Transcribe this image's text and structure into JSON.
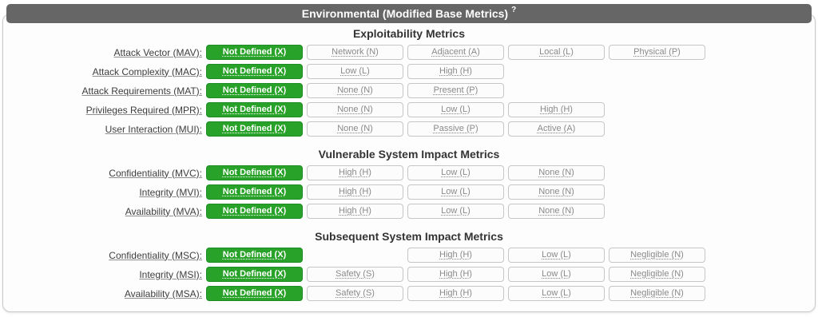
{
  "header": {
    "title": "Environmental (Modified Base Metrics)",
    "help_mark": "?"
  },
  "colors": {
    "header_bg": "#666666",
    "selected_bg": "#28a228",
    "selected_border": "#1d8c24",
    "panel_border": "#c9c9c9",
    "panel_bg": "#fdfdfd"
  },
  "sections": [
    {
      "title": "Exploitability Metrics",
      "rows": [
        {
          "label": "Attack Vector (MAV):",
          "buttons": [
            {
              "label": "Not Defined (X)",
              "col": 1,
              "selected": true
            },
            {
              "label": "Network (N)",
              "col": 2,
              "selected": false
            },
            {
              "label": "Adjacent (A)",
              "col": 3,
              "selected": false
            },
            {
              "label": "Local (L)",
              "col": 4,
              "selected": false
            },
            {
              "label": "Physical (P)",
              "col": 5,
              "selected": false
            }
          ]
        },
        {
          "label": "Attack Complexity (MAC):",
          "buttons": [
            {
              "label": "Not Defined (X)",
              "col": 1,
              "selected": true
            },
            {
              "label": "Low (L)",
              "col": 2,
              "selected": false
            },
            {
              "label": "High (H)",
              "col": 3,
              "selected": false
            }
          ]
        },
        {
          "label": "Attack Requirements (MAT):",
          "buttons": [
            {
              "label": "Not Defined (X)",
              "col": 1,
              "selected": true
            },
            {
              "label": "None (N)",
              "col": 2,
              "selected": false
            },
            {
              "label": "Present (P)",
              "col": 3,
              "selected": false
            }
          ]
        },
        {
          "label": "Privileges Required (MPR):",
          "buttons": [
            {
              "label": "Not Defined (X)",
              "col": 1,
              "selected": true
            },
            {
              "label": "None (N)",
              "col": 2,
              "selected": false
            },
            {
              "label": "Low (L)",
              "col": 3,
              "selected": false
            },
            {
              "label": "High (H)",
              "col": 4,
              "selected": false
            }
          ]
        },
        {
          "label": "User Interaction (MUI):",
          "buttons": [
            {
              "label": "Not Defined (X)",
              "col": 1,
              "selected": true
            },
            {
              "label": "None (N)",
              "col": 2,
              "selected": false
            },
            {
              "label": "Passive (P)",
              "col": 3,
              "selected": false
            },
            {
              "label": "Active (A)",
              "col": 4,
              "selected": false
            }
          ]
        }
      ]
    },
    {
      "title": "Vulnerable System Impact Metrics",
      "rows": [
        {
          "label": "Confidentiality (MVC):",
          "buttons": [
            {
              "label": "Not Defined (X)",
              "col": 1,
              "selected": true
            },
            {
              "label": "High (H)",
              "col": 2,
              "selected": false
            },
            {
              "label": "Low (L)",
              "col": 3,
              "selected": false
            },
            {
              "label": "None (N)",
              "col": 4,
              "selected": false
            }
          ]
        },
        {
          "label": "Integrity (MVI):",
          "buttons": [
            {
              "label": "Not Defined (X)",
              "col": 1,
              "selected": true
            },
            {
              "label": "High (H)",
              "col": 2,
              "selected": false
            },
            {
              "label": "Low (L)",
              "col": 3,
              "selected": false
            },
            {
              "label": "None (N)",
              "col": 4,
              "selected": false
            }
          ]
        },
        {
          "label": "Availability (MVA):",
          "buttons": [
            {
              "label": "Not Defined (X)",
              "col": 1,
              "selected": true
            },
            {
              "label": "High (H)",
              "col": 2,
              "selected": false
            },
            {
              "label": "Low (L)",
              "col": 3,
              "selected": false
            },
            {
              "label": "None (N)",
              "col": 4,
              "selected": false
            }
          ]
        }
      ]
    },
    {
      "title": "Subsequent System Impact Metrics",
      "rows": [
        {
          "label": "Confidentiality (MSC):",
          "buttons": [
            {
              "label": "Not Defined (X)",
              "col": 1,
              "selected": true
            },
            {
              "label": "High (H)",
              "col": 3,
              "selected": false
            },
            {
              "label": "Low (L)",
              "col": 4,
              "selected": false
            },
            {
              "label": "Negligible (N)",
              "col": 5,
              "selected": false
            }
          ]
        },
        {
          "label": "Integrity (MSI):",
          "buttons": [
            {
              "label": "Not Defined (X)",
              "col": 1,
              "selected": true
            },
            {
              "label": "Safety (S)",
              "col": 2,
              "selected": false
            },
            {
              "label": "High (H)",
              "col": 3,
              "selected": false
            },
            {
              "label": "Low (L)",
              "col": 4,
              "selected": false
            },
            {
              "label": "Negligible (N)",
              "col": 5,
              "selected": false
            }
          ]
        },
        {
          "label": "Availability (MSA):",
          "buttons": [
            {
              "label": "Not Defined (X)",
              "col": 1,
              "selected": true
            },
            {
              "label": "Safety (S)",
              "col": 2,
              "selected": false
            },
            {
              "label": "High (H)",
              "col": 3,
              "selected": false
            },
            {
              "label": "Low (L)",
              "col": 4,
              "selected": false
            },
            {
              "label": "Negligible (N)",
              "col": 5,
              "selected": false
            }
          ]
        }
      ]
    }
  ]
}
